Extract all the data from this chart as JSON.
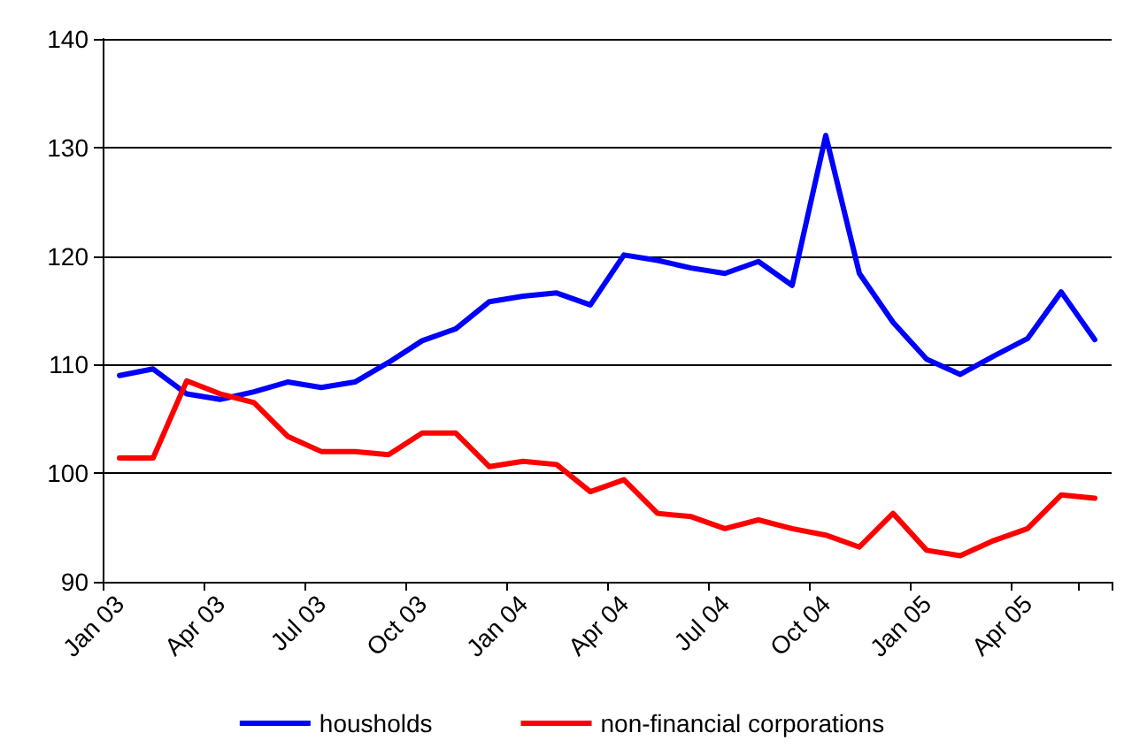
{
  "chart_data": {
    "type": "line",
    "categories": [
      "Jan 03",
      null,
      null,
      "Apr 03",
      null,
      null,
      "Jul 03",
      null,
      null,
      "Oct 03",
      null,
      null,
      "Jan 04",
      null,
      null,
      "Apr 04",
      null,
      null,
      "Jul 04",
      null,
      null,
      "Oct 04",
      null,
      null,
      "Jan 05",
      null,
      null,
      "Apr 05",
      null,
      null
    ],
    "series": [
      {
        "name": "housholds",
        "color": "#0000ff",
        "values": [
          109.0,
          109.6,
          107.3,
          106.8,
          107.5,
          108.4,
          107.9,
          108.4,
          110.2,
          112.2,
          113.3,
          115.8,
          116.3,
          116.6,
          115.5,
          120.1,
          119.6,
          118.9,
          118.4,
          119.5,
          117.3,
          131.1,
          118.4,
          113.9,
          110.5,
          109.1,
          110.8,
          112.4,
          116.7,
          112.3
        ]
      },
      {
        "name": "non-financial corporations",
        "color": "#ff0000",
        "values": [
          101.4,
          101.4,
          108.5,
          107.3,
          106.5,
          103.4,
          102.0,
          102.0,
          101.7,
          103.7,
          103.7,
          100.6,
          101.1,
          100.8,
          98.3,
          99.4,
          96.3,
          96.0,
          94.9,
          95.7,
          94.9,
          94.3,
          93.2,
          96.3,
          92.9,
          92.4,
          93.8,
          94.9,
          98.0,
          97.7
        ]
      }
    ],
    "ylim": [
      90,
      140
    ],
    "yticks": [
      90,
      100,
      110,
      120,
      130,
      140
    ],
    "grid": "y",
    "legend": "bottom",
    "marker": "none",
    "line_style": "solid"
  }
}
